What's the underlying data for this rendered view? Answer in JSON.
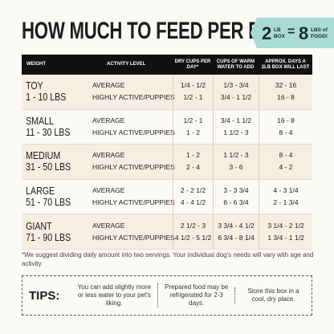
{
  "header": {
    "title": "HOW MUCH TO FEED PER DAY",
    "badge": {
      "box_amount": "2",
      "box_unit_top": "LB",
      "box_unit_bottom": "BOX",
      "equals": "=",
      "food_amount": "8",
      "food_unit_top": "LBS of",
      "food_unit_bottom": "FOOD!"
    }
  },
  "table": {
    "columns": [
      "WEIGHT",
      "ACTIVITY LEVEL",
      "DRY CUPS PER DAY*",
      "CUPS OF WARM WATER TO ADD",
      "APPROX. DAYS A 2LB BOX WILL LAST"
    ],
    "rows": [
      {
        "weight": "TOY",
        "range": "1 - 10 LBS",
        "activity": [
          "AVERAGE",
          "HIGHLY ACTIVE/PUPPIES"
        ],
        "dry": [
          "1/4 - 1/2",
          "1/2 - 1"
        ],
        "water": [
          "1/3 - 3/4",
          "3/4 - 1 1/2"
        ],
        "days": [
          "32 - 16",
          "16 - 8"
        ]
      },
      {
        "weight": "SMALL",
        "range": "11 - 30 LBS",
        "activity": [
          "AVERAGE",
          "HIGHLY ACTIVE/PUPPIES"
        ],
        "dry": [
          "1/2 - 1",
          "1 - 2"
        ],
        "water": [
          "3/4 - 1 1/2",
          "1 1/2 - 3"
        ],
        "days": [
          "16 - 8",
          "8 - 4"
        ]
      },
      {
        "weight": "MEDIUM",
        "range": "31 - 50 LBS",
        "activity": [
          "AVERAGE",
          "HIGHLY ACTIVE/PUPPIES"
        ],
        "dry": [
          "1 - 2",
          "2 - 4"
        ],
        "water": [
          "1 1/2 - 3",
          "3 - 6"
        ],
        "days": [
          "8 - 4",
          "4 - 2"
        ]
      },
      {
        "weight": "LARGE",
        "range": "51 - 70 LBS",
        "activity": [
          "AVERAGE",
          "HIGHLY ACTIVE/PUPPIES"
        ],
        "dry": [
          "2 - 2 1/2",
          "4 - 4 1/2"
        ],
        "water": [
          "3 - 3 3/4",
          "6 - 6 3/4"
        ],
        "days": [
          "4 - 3 1/4",
          "2 - 1 3/4"
        ]
      },
      {
        "weight": "GIANT",
        "range": "71 - 90 LBS",
        "activity": [
          "AVERAGE",
          "HIGHLY ACTIVE/PUPPIES"
        ],
        "dry": [
          "2 1/2 - 3",
          "4 1/2 - 5 1/2"
        ],
        "water": [
          "3 3/4 - 4 1/2",
          "6 3/4 - 8 1/4"
        ],
        "days": [
          "3 1/4 - 2 1/2",
          "1 3/4 - 1 1/2"
        ]
      }
    ]
  },
  "footnote": "*We suggest dividing daily amount into two servings. Your individual dog's needs will vary with age and activity.",
  "tips": {
    "label": "TIPS:",
    "items": [
      "You can add slightly more or less water to your pet's liking.",
      "Prepared food may be refrigerated for 2-3 days.",
      "Store this box in a cool, dry place."
    ]
  }
}
